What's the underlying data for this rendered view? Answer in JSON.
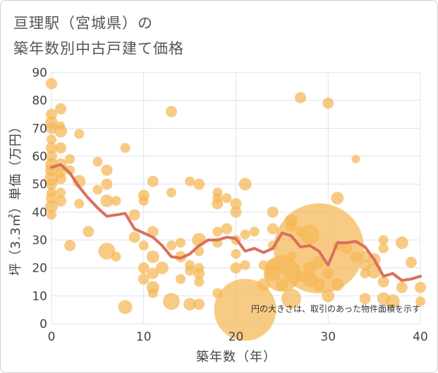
{
  "chart_data": {
    "type": "scatter",
    "title_line1": "亘理駅（宮城県）の",
    "title_line2": "築年数別中古戸建て価格",
    "xlabel": "築年数（年）",
    "ylabel": "坪（3.3㎡）単価（万円）",
    "xlim": [
      0,
      40
    ],
    "ylim": [
      0,
      90
    ],
    "x_ticks": [
      0,
      10,
      20,
      30,
      40
    ],
    "y_ticks": [
      0,
      10,
      20,
      30,
      40,
      50,
      60,
      70,
      80,
      90
    ],
    "grid": true,
    "annotation": "円の大きさは、取引のあった物件面積を示す",
    "colors": {
      "bubble": "#f5b755",
      "line": "#d9705c",
      "grid": "#dde3ec",
      "text": "#444444"
    },
    "points": [
      {
        "x": 0,
        "y": 86,
        "s": 8
      },
      {
        "x": 0,
        "y": 75,
        "s": 8
      },
      {
        "x": 0,
        "y": 72,
        "s": 9
      },
      {
        "x": 0,
        "y": 70,
        "s": 8
      },
      {
        "x": 0,
        "y": 66,
        "s": 7
      },
      {
        "x": 0,
        "y": 63,
        "s": 8
      },
      {
        "x": 0,
        "y": 60,
        "s": 8
      },
      {
        "x": 0,
        "y": 57,
        "s": 9
      },
      {
        "x": 0,
        "y": 55,
        "s": 9
      },
      {
        "x": 0,
        "y": 52,
        "s": 10
      },
      {
        "x": 0,
        "y": 50,
        "s": 8
      },
      {
        "x": 0,
        "y": 47,
        "s": 7
      },
      {
        "x": 0,
        "y": 45,
        "s": 8
      },
      {
        "x": 0,
        "y": 42,
        "s": 9
      },
      {
        "x": 0,
        "y": 39,
        "s": 7
      },
      {
        "x": 1,
        "y": 77,
        "s": 8
      },
      {
        "x": 1,
        "y": 71,
        "s": 6
      },
      {
        "x": 1,
        "y": 69,
        "s": 9
      },
      {
        "x": 1,
        "y": 63,
        "s": 8
      },
      {
        "x": 1,
        "y": 57,
        "s": 9
      },
      {
        "x": 1,
        "y": 54,
        "s": 7
      },
      {
        "x": 1,
        "y": 52,
        "s": 8
      },
      {
        "x": 1,
        "y": 47,
        "s": 7
      },
      {
        "x": 1,
        "y": 44,
        "s": 8
      },
      {
        "x": 2,
        "y": 59,
        "s": 7
      },
      {
        "x": 2,
        "y": 55,
        "s": 7
      },
      {
        "x": 2,
        "y": 28,
        "s": 8
      },
      {
        "x": 3,
        "y": 68,
        "s": 7
      },
      {
        "x": 3,
        "y": 51,
        "s": 9
      },
      {
        "x": 3,
        "y": 43,
        "s": 7
      },
      {
        "x": 4,
        "y": 33,
        "s": 8
      },
      {
        "x": 5,
        "y": 58,
        "s": 7
      },
      {
        "x": 5,
        "y": 48,
        "s": 7
      },
      {
        "x": 6,
        "y": 55,
        "s": 8
      },
      {
        "x": 6,
        "y": 50,
        "s": 8
      },
      {
        "x": 6,
        "y": 44,
        "s": 9
      },
      {
        "x": 6,
        "y": 26,
        "s": 12
      },
      {
        "x": 7,
        "y": 44,
        "s": 7
      },
      {
        "x": 7,
        "y": 24,
        "s": 7
      },
      {
        "x": 8,
        "y": 63,
        "s": 7
      },
      {
        "x": 8,
        "y": 6,
        "s": 10
      },
      {
        "x": 9,
        "y": 39,
        "s": 8
      },
      {
        "x": 9,
        "y": 31,
        "s": 8
      },
      {
        "x": 10,
        "y": 46,
        "s": 8
      },
      {
        "x": 10,
        "y": 44,
        "s": 7
      },
      {
        "x": 10,
        "y": 28,
        "s": 7
      },
      {
        "x": 10,
        "y": 20,
        "s": 8
      },
      {
        "x": 10,
        "y": 16,
        "s": 8
      },
      {
        "x": 11,
        "y": 51,
        "s": 8
      },
      {
        "x": 11,
        "y": 33,
        "s": 8
      },
      {
        "x": 11,
        "y": 24,
        "s": 9
      },
      {
        "x": 11,
        "y": 18,
        "s": 8
      },
      {
        "x": 11,
        "y": 13,
        "s": 9
      },
      {
        "x": 11,
        "y": 11,
        "s": 7
      },
      {
        "x": 12,
        "y": 20,
        "s": 9
      },
      {
        "x": 13,
        "y": 76,
        "s": 8
      },
      {
        "x": 13,
        "y": 47,
        "s": 7
      },
      {
        "x": 13,
        "y": 28,
        "s": 7
      },
      {
        "x": 13,
        "y": 8,
        "s": 12
      },
      {
        "x": 14,
        "y": 29,
        "s": 7
      },
      {
        "x": 14,
        "y": 24,
        "s": 8
      },
      {
        "x": 14,
        "y": 16,
        "s": 7
      },
      {
        "x": 15,
        "y": 51,
        "s": 7
      },
      {
        "x": 15,
        "y": 21,
        "s": 7
      },
      {
        "x": 15,
        "y": 19,
        "s": 7
      },
      {
        "x": 15,
        "y": 7,
        "s": 9
      },
      {
        "x": 16,
        "y": 50,
        "s": 8
      },
      {
        "x": 16,
        "y": 30,
        "s": 10
      },
      {
        "x": 16,
        "y": 26,
        "s": 7
      },
      {
        "x": 16,
        "y": 20,
        "s": 7
      },
      {
        "x": 16,
        "y": 18,
        "s": 8
      },
      {
        "x": 16,
        "y": 15,
        "s": 7
      },
      {
        "x": 16,
        "y": 7,
        "s": 8
      },
      {
        "x": 18,
        "y": 47,
        "s": 7
      },
      {
        "x": 18,
        "y": 45,
        "s": 7
      },
      {
        "x": 18,
        "y": 43,
        "s": 8
      },
      {
        "x": 18,
        "y": 33,
        "s": 7
      },
      {
        "x": 18,
        "y": 29,
        "s": 7
      },
      {
        "x": 18,
        "y": 11,
        "s": 7
      },
      {
        "x": 19,
        "y": 34,
        "s": 8
      },
      {
        "x": 19,
        "y": 45,
        "s": 7
      },
      {
        "x": 20,
        "y": 43,
        "s": 8
      },
      {
        "x": 20,
        "y": 40,
        "s": 8
      },
      {
        "x": 20,
        "y": 30,
        "s": 7
      },
      {
        "x": 20,
        "y": 25,
        "s": 7
      },
      {
        "x": 20,
        "y": 20,
        "s": 8
      },
      {
        "x": 21,
        "y": 50,
        "s": 9
      },
      {
        "x": 21,
        "y": 32,
        "s": 7
      },
      {
        "x": 21,
        "y": 21,
        "s": 7
      },
      {
        "x": 21,
        "y": 5,
        "s": 44
      },
      {
        "x": 22,
        "y": 33,
        "s": 7
      },
      {
        "x": 23,
        "y": 21,
        "s": 7
      },
      {
        "x": 23,
        "y": 14,
        "s": 9
      },
      {
        "x": 24,
        "y": 40,
        "s": 8
      },
      {
        "x": 24,
        "y": 34,
        "s": 8
      },
      {
        "x": 24,
        "y": 28,
        "s": 7
      },
      {
        "x": 24,
        "y": 21,
        "s": 9
      },
      {
        "x": 24,
        "y": 18,
        "s": 11
      },
      {
        "x": 25,
        "y": 18,
        "s": 26
      },
      {
        "x": 25,
        "y": 14,
        "s": 9
      },
      {
        "x": 26,
        "y": 37,
        "s": 9
      },
      {
        "x": 26,
        "y": 35,
        "s": 8
      },
      {
        "x": 26,
        "y": 24,
        "s": 7
      },
      {
        "x": 26,
        "y": 9,
        "s": 14
      },
      {
        "x": 27,
        "y": 81,
        "s": 8
      },
      {
        "x": 27,
        "y": 33,
        "s": 7
      },
      {
        "x": 27,
        "y": 17,
        "s": 8
      },
      {
        "x": 28,
        "y": 32,
        "s": 14
      },
      {
        "x": 28,
        "y": 20,
        "s": 9
      },
      {
        "x": 28,
        "y": 16,
        "s": 11
      },
      {
        "x": 29,
        "y": 27,
        "s": 64
      },
      {
        "x": 29,
        "y": 22,
        "s": 9
      },
      {
        "x": 29,
        "y": 14,
        "s": 9
      },
      {
        "x": 30,
        "y": 79,
        "s": 8
      },
      {
        "x": 30,
        "y": 18,
        "s": 8
      },
      {
        "x": 30,
        "y": 10,
        "s": 9
      },
      {
        "x": 31,
        "y": 45,
        "s": 9
      },
      {
        "x": 31,
        "y": 28,
        "s": 7
      },
      {
        "x": 31,
        "y": 14,
        "s": 9
      },
      {
        "x": 32,
        "y": 27,
        "s": 8
      },
      {
        "x": 33,
        "y": 59,
        "s": 6
      },
      {
        "x": 33,
        "y": 24,
        "s": 8
      },
      {
        "x": 34,
        "y": 24,
        "s": 8
      },
      {
        "x": 34,
        "y": 21,
        "s": 8
      },
      {
        "x": 34,
        "y": 9,
        "s": 8
      },
      {
        "x": 34,
        "y": 18,
        "s": 7
      },
      {
        "x": 35,
        "y": 23,
        "s": 9
      },
      {
        "x": 35,
        "y": 19,
        "s": 11
      },
      {
        "x": 36,
        "y": 30,
        "s": 7
      },
      {
        "x": 36,
        "y": 27,
        "s": 7
      },
      {
        "x": 36,
        "y": 15,
        "s": 8
      },
      {
        "x": 36,
        "y": 9,
        "s": 9
      },
      {
        "x": 37,
        "y": 8,
        "s": 10
      },
      {
        "x": 38,
        "y": 29,
        "s": 9
      },
      {
        "x": 38,
        "y": 13,
        "s": 8
      },
      {
        "x": 39,
        "y": 22,
        "s": 8
      },
      {
        "x": 40,
        "y": 13,
        "s": 8
      },
      {
        "x": 40,
        "y": 8,
        "s": 7
      }
    ],
    "trend": {
      "x": [
        0,
        1,
        2,
        3,
        4,
        5,
        6,
        7,
        8,
        9,
        10,
        11,
        12,
        13,
        14,
        15,
        16,
        17,
        18,
        19,
        20,
        21,
        22,
        23,
        24,
        25,
        26,
        27,
        28,
        29,
        30,
        31,
        32,
        33,
        34,
        35,
        36,
        37,
        38,
        39,
        40
      ],
      "y": [
        56,
        57,
        54,
        49,
        45,
        41.5,
        38.5,
        39,
        39.5,
        34,
        32.5,
        31,
        28,
        24,
        23.5,
        25,
        28,
        30,
        30,
        31,
        30.5,
        26,
        27,
        25.5,
        27,
        32.5,
        31.5,
        27.5,
        28,
        26,
        21,
        29,
        29,
        29.5,
        27.5,
        23,
        17,
        18,
        15.5,
        16,
        17
      ]
    }
  }
}
